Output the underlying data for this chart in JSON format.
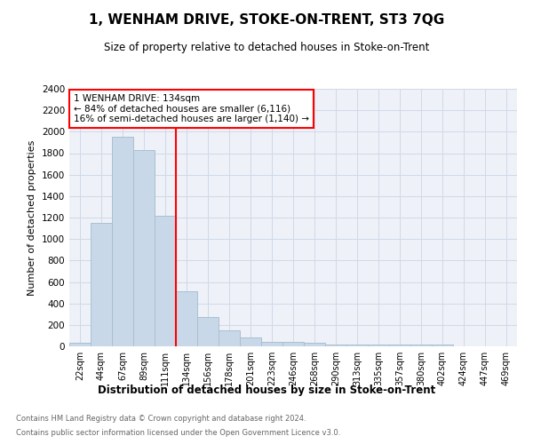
{
  "title": "1, WENHAM DRIVE, STOKE-ON-TRENT, ST3 7QG",
  "subtitle": "Size of property relative to detached houses in Stoke-on-Trent",
  "xlabel": "Distribution of detached houses by size in Stoke-on-Trent",
  "ylabel": "Number of detached properties",
  "categories": [
    "22sqm",
    "44sqm",
    "67sqm",
    "89sqm",
    "111sqm",
    "134sqm",
    "156sqm",
    "178sqm",
    "201sqm",
    "223sqm",
    "246sqm",
    "268sqm",
    "290sqm",
    "313sqm",
    "335sqm",
    "357sqm",
    "380sqm",
    "402sqm",
    "424sqm",
    "447sqm",
    "469sqm"
  ],
  "values": [
    30,
    1150,
    1950,
    1830,
    1220,
    510,
    270,
    150,
    80,
    45,
    40,
    30,
    20,
    20,
    20,
    20,
    20,
    20,
    0,
    0,
    0
  ],
  "bar_color": "#c8d8e8",
  "bar_edge_color": "#a8c0d0",
  "vline_x_index": 5,
  "vline_color": "red",
  "annotation_text": "1 WENHAM DRIVE: 134sqm\n← 84% of detached houses are smaller (6,116)\n16% of semi-detached houses are larger (1,140) →",
  "annotation_box_color": "white",
  "annotation_box_edge": "red",
  "ylim": [
    0,
    2400
  ],
  "yticks": [
    0,
    200,
    400,
    600,
    800,
    1000,
    1200,
    1400,
    1600,
    1800,
    2000,
    2200,
    2400
  ],
  "grid_color": "#d0d8e8",
  "background_color": "#eef2f8",
  "footer_line1": "Contains HM Land Registry data © Crown copyright and database right 2024.",
  "footer_line2": "Contains public sector information licensed under the Open Government Licence v3.0."
}
